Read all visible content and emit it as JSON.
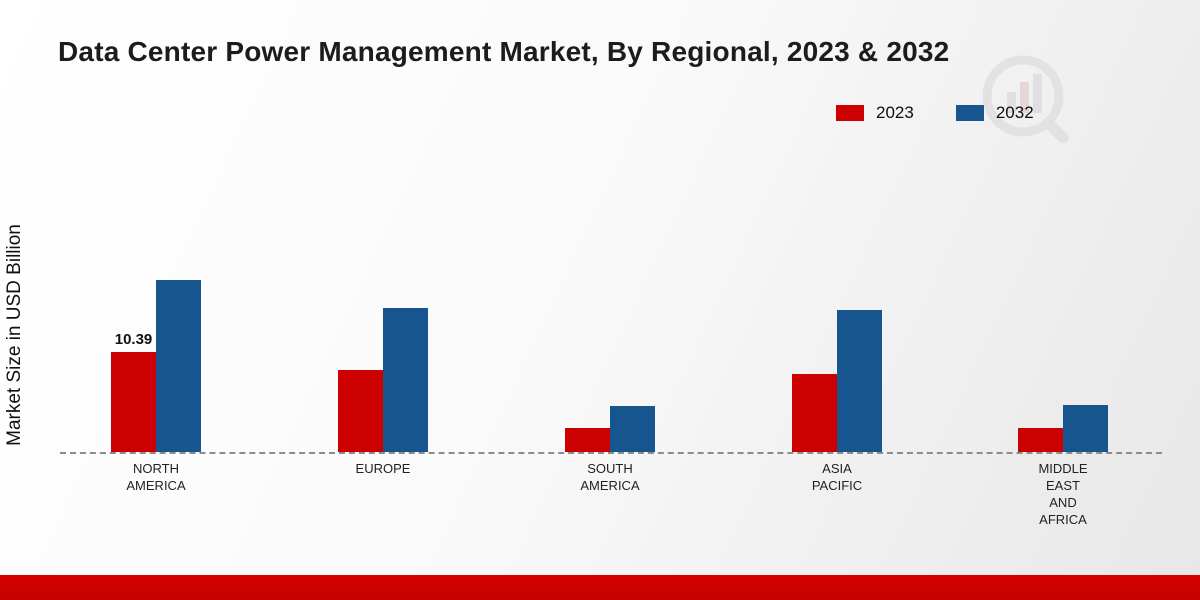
{
  "title": "Data Center Power Management Market, By Regional, 2023 & 2032",
  "ylabel": "Market Size in USD Billion",
  "legend": [
    {
      "label": "2023",
      "color": "#cc0001"
    },
    {
      "label": "2032",
      "color": "#17558e"
    }
  ],
  "chart_data": {
    "type": "bar",
    "title": "Data Center Power Management Market, By Regional, 2023 & 2032",
    "xlabel": "",
    "ylabel": "Market Size in USD Billion",
    "categories": [
      "NORTH AMERICA",
      "EUROPE",
      "SOUTH AMERICA",
      "ASIA PACIFIC",
      "MIDDLE EAST AND AFRICA"
    ],
    "category_lines": [
      [
        "NORTH",
        "AMERICA"
      ],
      [
        "EUROPE"
      ],
      [
        "SOUTH",
        "AMERICA"
      ],
      [
        "ASIA",
        "PACIFIC"
      ],
      [
        "MIDDLE",
        "EAST",
        "AND",
        "AFRICA"
      ]
    ],
    "series": [
      {
        "name": "2023",
        "color": "#cc0001",
        "values": [
          10.39,
          8.5,
          2.5,
          8.1,
          2.5
        ]
      },
      {
        "name": "2032",
        "color": "#17558e",
        "values": [
          17.9,
          15.0,
          4.8,
          14.8,
          4.9
        ]
      }
    ],
    "data_labels": [
      {
        "series": "2023",
        "category": "NORTH AMERICA",
        "text": "10.39"
      }
    ],
    "ylim": [
      0,
      20
    ],
    "grid": false,
    "baseline_style": "dashed",
    "legend_position": "top-right"
  }
}
